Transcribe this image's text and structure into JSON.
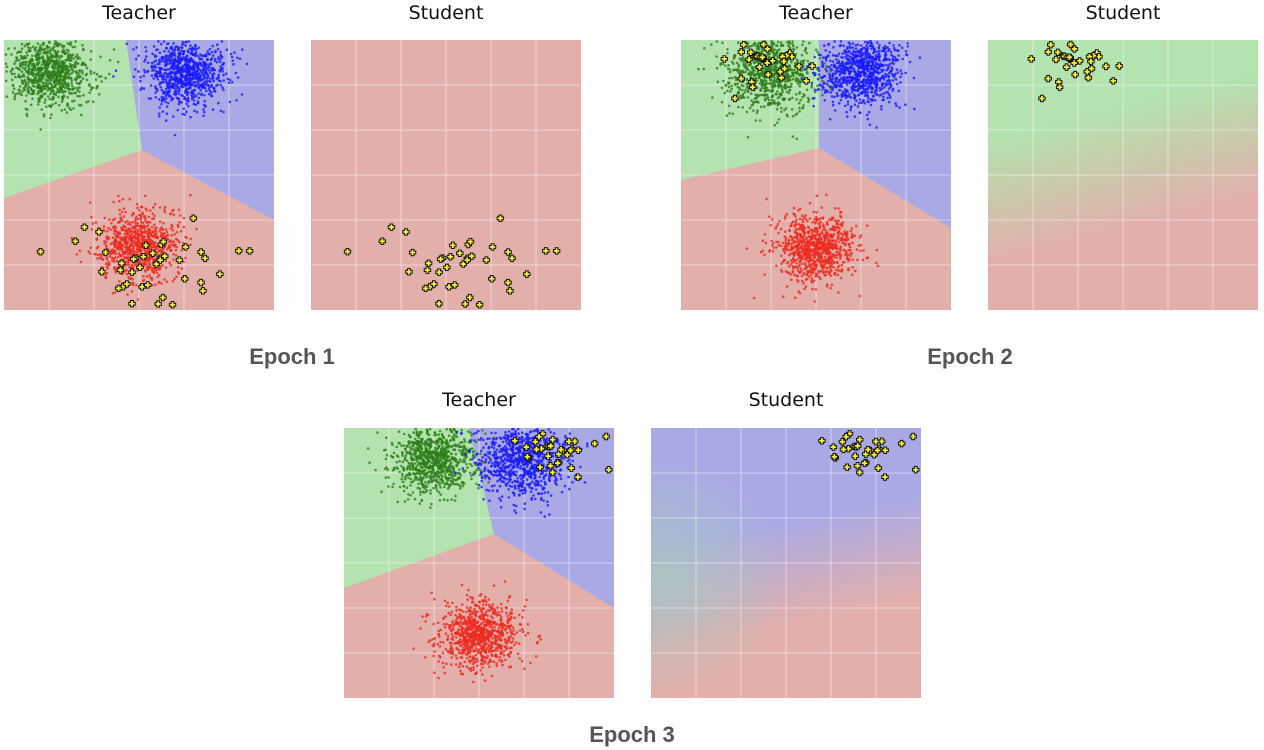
{
  "chart_data": [
    {
      "type": "scatter",
      "epoch_label": "Epoch 1",
      "teacher": {
        "title": "Teacher",
        "regions": "teacher_epoch1",
        "clusters": [
          {
            "class": "green",
            "color": "#2e7d1a",
            "center": [
              -2.0,
              2.3
            ],
            "spread": 0.45
          },
          {
            "class": "blue",
            "color": "#1a1aff",
            "center": [
              1.0,
              2.3
            ],
            "spread": 0.45
          },
          {
            "class": "red",
            "color": "#ee2a1f",
            "center": [
              0.0,
              -1.6
            ],
            "spread": 0.45
          }
        ],
        "queries": {
          "color": "#f5ee3a",
          "center": [
            0.1,
            -2.1
          ],
          "spread": [
            0.95,
            0.45
          ]
        }
      },
      "student": {
        "title": "Student",
        "regions": "all_red",
        "queries": {
          "color": "#f5ee3a",
          "center": [
            0.1,
            -2.1
          ],
          "spread": [
            0.95,
            0.45
          ]
        }
      }
    },
    {
      "type": "scatter",
      "epoch_label": "Epoch 2",
      "teacher": {
        "title": "Teacher",
        "regions": "teacher_epoch2",
        "clusters": [
          {
            "class": "green",
            "color": "#2e7d1a",
            "center": [
              -1.0,
              2.3
            ],
            "spread": 0.5
          },
          {
            "class": "blue",
            "color": "#1a1aff",
            "center": [
              1.0,
              2.3
            ],
            "spread": 0.45
          },
          {
            "class": "red",
            "color": "#ee2a1f",
            "center": [
              0.0,
              -1.6
            ],
            "spread": 0.45
          }
        ],
        "queries": {
          "color": "#f5ee3a",
          "center": [
            -1.2,
            2.6
          ],
          "spread": [
            0.55,
            0.35
          ]
        }
      },
      "student": {
        "title": "Student",
        "regions": "student_epoch2",
        "queries": {
          "color": "#f5ee3a",
          "center": [
            -1.2,
            2.6
          ],
          "spread": [
            0.55,
            0.35
          ]
        }
      }
    },
    {
      "type": "scatter",
      "epoch_label": "Epoch 3",
      "teacher": {
        "title": "Teacher",
        "regions": "teacher_epoch3",
        "clusters": [
          {
            "class": "green",
            "color": "#2e7d1a",
            "center": [
              -1.0,
              2.3
            ],
            "spread": 0.45
          },
          {
            "class": "blue",
            "color": "#1a1aff",
            "center": [
              1.0,
              2.3
            ],
            "spread": 0.5
          },
          {
            "class": "red",
            "color": "#ee2a1f",
            "center": [
              0.0,
              -1.6
            ],
            "spread": 0.45
          }
        ],
        "queries": {
          "color": "#f5ee3a",
          "center": [
            1.6,
            2.5
          ],
          "spread": [
            0.55,
            0.35
          ]
        }
      },
      "student": {
        "title": "Student",
        "regions": "student_epoch3",
        "queries": {
          "color": "#f5ee3a",
          "center": [
            1.6,
            2.5
          ],
          "spread": [
            0.55,
            0.35
          ]
        }
      }
    }
  ],
  "axes": {
    "xlim": [
      -3,
      3
    ],
    "ylim": [
      -3,
      3
    ],
    "grid": true
  },
  "colors": {
    "green_region": "#b3e3ae",
    "blue_region": "#a9a9e6",
    "red_region": "#e2afab",
    "grid": "#ffffff"
  }
}
